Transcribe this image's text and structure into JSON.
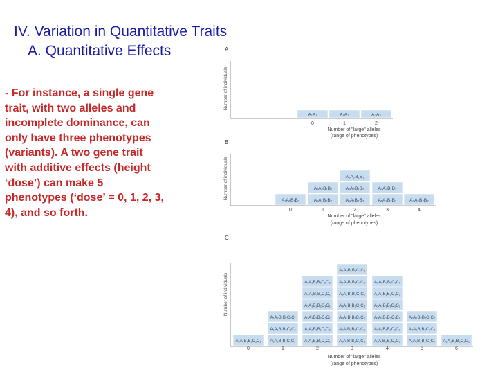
{
  "slide": {
    "title_line1": "IV. Variation in Quantitative Traits",
    "title_line2": "A. Quantitative Effects",
    "body": "- For instance, a single gene trait, with two alleles and incomplete dominance, can only have three phenotypes (variants). A two gene trait with additive effects (height ‘dose’) can make 5 phenotypes (‘dose’ = 0, 1, 2, 3, 4), and so forth."
  },
  "figure": {
    "y_axis_label": "Number of individuals",
    "x_axis_label_line1": "Number of \"large\" alleles",
    "x_axis_label_line2": "(range of phenotypes)",
    "bar_color": "#c8dcf0",
    "panels": [
      {
        "letter": "A",
        "columns": [
          {
            "x": "0",
            "cells": [
              "A₁A₁"
            ]
          },
          {
            "x": "1",
            "cells": [
              "A₁A₂"
            ]
          },
          {
            "x": "2",
            "cells": [
              "A₂A₂"
            ]
          }
        ]
      },
      {
        "letter": "B",
        "columns": [
          {
            "x": "0",
            "cells": [
              "A₁A₁B₁B₁"
            ]
          },
          {
            "x": "1",
            "cells": [
              "A₁A₁B₁B₂",
              "A₁A₂B₁B₁"
            ]
          },
          {
            "x": "2",
            "cells": [
              "A₁A₁B₂B₂",
              "A₁A₂B₁B₂",
              "A₂A₂B₁B₁"
            ]
          },
          {
            "x": "3",
            "cells": [
              "A₁A₂B₂B₂",
              "A₂A₂B₁B₂"
            ]
          },
          {
            "x": "4",
            "cells": [
              "A₂A₂B₂B₂"
            ]
          }
        ]
      },
      {
        "letter": "C",
        "columns": [
          {
            "x": "0",
            "cells": [
              "A₁A₁B₁B₁C₁C₁"
            ]
          },
          {
            "x": "1",
            "cells": [
              "A₁A₁B₁B₁C₁C₂",
              "A₁A₁B₁B₂C₁C₁",
              "A₁A₂B₁B₁C₁C₁"
            ]
          },
          {
            "x": "2",
            "cells": [
              "A₁A₁B₁B₂C₁C₂",
              "A₁A₂B₁B₁C₁C₂",
              "A₁A₂B₁B₂C₁C₁",
              "A₁A₁B₂B₂C₁C₁",
              "A₂A₂B₁B₁C₁C₁",
              "A₁A₁B₁B₁C₂C₂"
            ]
          },
          {
            "x": "3",
            "cells": [
              "A₁A₁B₁B₂C₂C₂",
              "A₁A₁B₂B₂C₁C₂",
              "A₁A₂B₁B₁C₂C₂",
              "A₁A₂B₁B₂C₁C₂",
              "A₁A₂B₂B₂C₁C₁",
              "A₂A₂B₁B₁C₁C₂",
              "A₂A₂B₁B₂C₁C₁"
            ]
          },
          {
            "x": "4",
            "cells": [
              "A₁A₁B₂B₂C₂C₂",
              "A₁A₂B₁B₂C₂C₂",
              "A₁A₂B₂B₂C₁C₂",
              "A₂A₂B₁B₁C₂C₂",
              "A₂A₂B₁B₂C₁C₂",
              "A₂A₂B₂B₂C₁C₁"
            ]
          },
          {
            "x": "5",
            "cells": [
              "A₁A₂B₂B₂C₂C₂",
              "A₂A₂B₁B₂C₂C₂",
              "A₂A₂B₂B₂C₁C₂"
            ]
          },
          {
            "x": "6",
            "cells": [
              "A₂A₂B₂B₂C₂C₂"
            ]
          }
        ]
      }
    ]
  }
}
